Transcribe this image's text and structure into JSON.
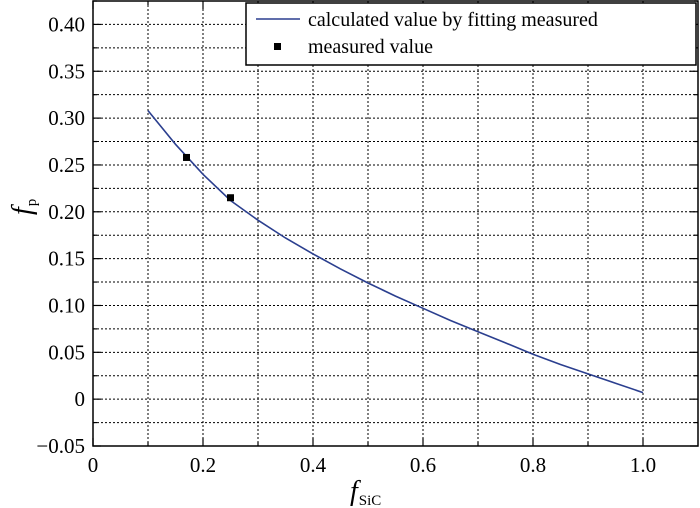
{
  "chart_data": {
    "type": "line",
    "title": "",
    "xlabel_main": "f",
    "xlabel_sub": "SiC",
    "ylabel_main": "f",
    "ylabel_sub": "p",
    "xlim": [
      0,
      1.1
    ],
    "ylim": [
      -0.05,
      0.425
    ],
    "x_ticks": [
      0,
      0.2,
      0.4,
      0.6,
      0.8,
      1.0
    ],
    "x_tick_labels": [
      "0",
      "0.2",
      "0.4",
      "0.6",
      "0.8",
      "1.0"
    ],
    "y_ticks": [
      -0.05,
      0,
      0.05,
      0.1,
      0.15,
      0.2,
      0.25,
      0.3,
      0.35,
      0.4
    ],
    "y_tick_labels": [
      "−0.05",
      "0",
      "0.05",
      "0.10",
      "0.15",
      "0.20",
      "0.25",
      "0.30",
      "0.35",
      "0.40"
    ],
    "grid": true,
    "legend_position": "top-right",
    "series": [
      {
        "name": "calculated value by fitting measured",
        "kind": "line",
        "color": "#2b3f8f",
        "x": [
          0.1,
          0.15,
          0.2,
          0.25,
          0.3,
          0.35,
          0.4,
          0.45,
          0.5,
          0.55,
          0.6,
          0.65,
          0.7,
          0.75,
          0.8,
          0.85,
          0.9,
          0.95,
          1.0
        ],
        "y": [
          0.308,
          0.272,
          0.24,
          0.212,
          0.191,
          0.172,
          0.155,
          0.139,
          0.124,
          0.11,
          0.097,
          0.084,
          0.072,
          0.06,
          0.048,
          0.037,
          0.027,
          0.017,
          0.007
        ]
      },
      {
        "name": "measured value",
        "kind": "scatter",
        "color": "#000000",
        "x": [
          0.17,
          0.25
        ],
        "y": [
          0.258,
          0.215
        ]
      }
    ]
  }
}
